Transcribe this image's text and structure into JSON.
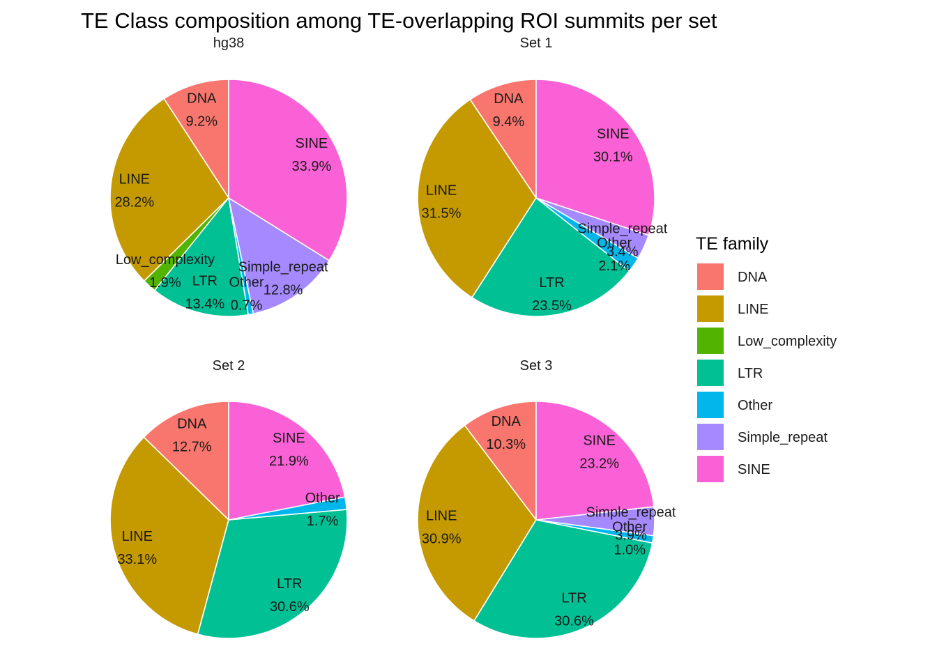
{
  "chart_data": {
    "type": "pie",
    "title": "TE Class composition among TE-overlapping ROI summits per set",
    "legend": {
      "title": "TE family",
      "position": "right",
      "entries": [
        "DNA",
        "LINE",
        "Low_complexity",
        "LTR",
        "Other",
        "Simple_repeat",
        "SINE"
      ]
    },
    "colors": {
      "DNA": "#F8766D",
      "LINE": "#C49A00",
      "Low_complexity": "#53B400",
      "LTR": "#00C094",
      "Other": "#00B6EB",
      "Simple_repeat": "#A58AFF",
      "SINE": "#FB61D7"
    },
    "panels": [
      {
        "title": "hg38",
        "slices": [
          {
            "family": "DNA",
            "value": 9.2,
            "label": "9.2%"
          },
          {
            "family": "LINE",
            "value": 28.2,
            "label": "28.2%"
          },
          {
            "family": "Low_complexity",
            "value": 1.9,
            "label": "1.9%"
          },
          {
            "family": "LTR",
            "value": 13.4,
            "label": "13.4%"
          },
          {
            "family": "Other",
            "value": 0.7,
            "label": "0.7%"
          },
          {
            "family": "Simple_repeat",
            "value": 12.8,
            "label": "12.8%"
          },
          {
            "family": "SINE",
            "value": 33.9,
            "label": "33.9%"
          }
        ]
      },
      {
        "title": "Set  1",
        "slices": [
          {
            "family": "DNA",
            "value": 9.4,
            "label": "9.4%"
          },
          {
            "family": "LINE",
            "value": 31.5,
            "label": "31.5%"
          },
          {
            "family": "LTR",
            "value": 23.5,
            "label": "23.5%"
          },
          {
            "family": "Other",
            "value": 2.1,
            "label": "2.1%"
          },
          {
            "family": "Simple_repeat",
            "value": 3.4,
            "label": "3.4%"
          },
          {
            "family": "SINE",
            "value": 30.1,
            "label": "30.1%"
          }
        ]
      },
      {
        "title": "Set  2",
        "slices": [
          {
            "family": "DNA",
            "value": 12.7,
            "label": "12.7%"
          },
          {
            "family": "LINE",
            "value": 33.1,
            "label": "33.1%"
          },
          {
            "family": "LTR",
            "value": 30.6,
            "label": "30.6%"
          },
          {
            "family": "Other",
            "value": 1.7,
            "label": "1.7%"
          },
          {
            "family": "SINE",
            "value": 21.9,
            "label": "21.9%"
          }
        ]
      },
      {
        "title": "Set  3",
        "slices": [
          {
            "family": "DNA",
            "value": 10.3,
            "label": "10.3%"
          },
          {
            "family": "LINE",
            "value": 30.9,
            "label": "30.9%"
          },
          {
            "family": "LTR",
            "value": 30.6,
            "label": "30.6%"
          },
          {
            "family": "Other",
            "value": 1.0,
            "label": "1.0%"
          },
          {
            "family": "Simple_repeat",
            "value": 3.9,
            "label": "3.9%"
          },
          {
            "family": "SINE",
            "value": 23.2,
            "label": "23.2%"
          }
        ]
      }
    ]
  }
}
